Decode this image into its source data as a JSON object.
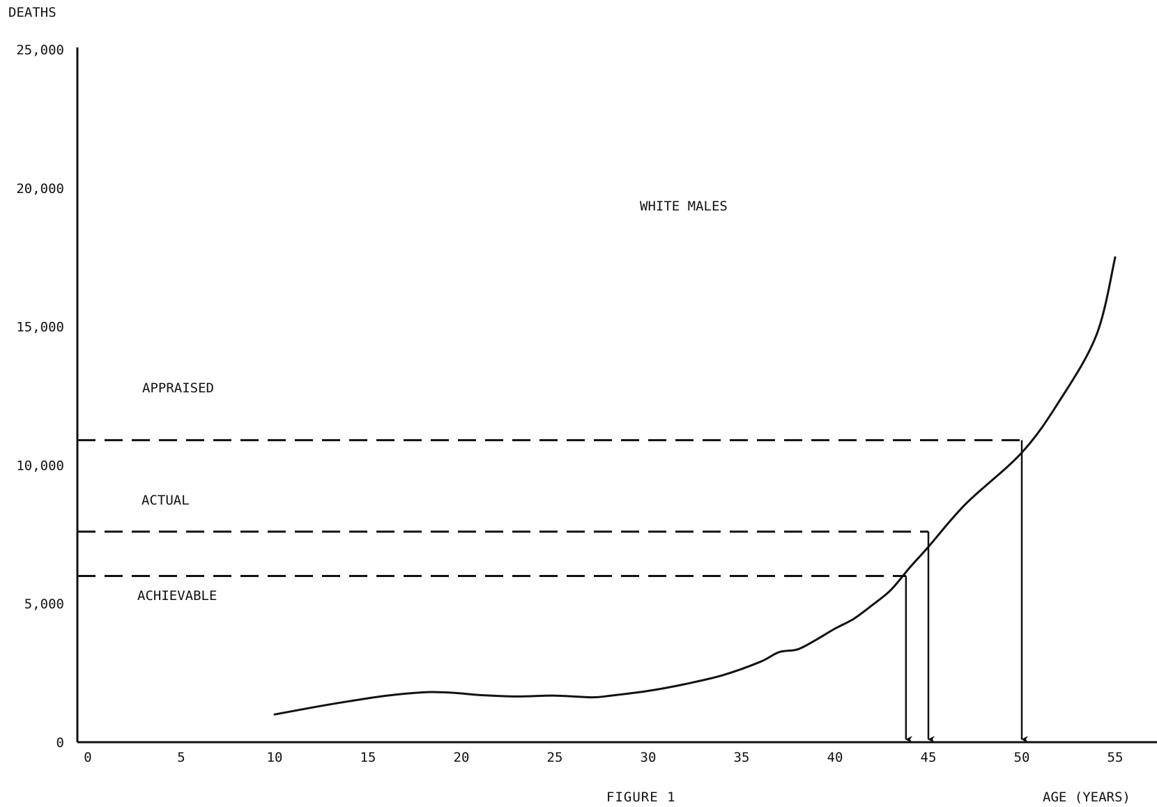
{
  "chart_data": {
    "type": "line",
    "title": "WHITE MALES",
    "caption": "FIGURE 1",
    "xlabel": "AGE (YEARS)",
    "ylabel": "DEATHS",
    "xlim": [
      0,
      55
    ],
    "ylim": [
      0,
      25000
    ],
    "x_ticks": [
      0,
      5,
      10,
      15,
      20,
      25,
      30,
      35,
      40,
      45,
      50,
      55
    ],
    "x_tick_labels": [
      "0",
      "5",
      "10",
      "15",
      "20",
      "25",
      "30",
      "35",
      "40",
      "45",
      "50",
      "55"
    ],
    "y_ticks": [
      0,
      5000,
      10000,
      15000,
      20000,
      25000
    ],
    "y_tick_labels": [
      "0",
      "5,000",
      "10,000",
      "15,000",
      "20,000",
      "25,000"
    ],
    "grid": false,
    "series": [
      {
        "points": [
          [
            10,
            1000
          ],
          [
            12,
            1250
          ],
          [
            14,
            1480
          ],
          [
            16,
            1680
          ],
          [
            18,
            1800
          ],
          [
            19,
            1800
          ],
          [
            20,
            1760
          ],
          [
            21,
            1700
          ],
          [
            23,
            1650
          ],
          [
            25,
            1680
          ],
          [
            27,
            1620
          ],
          [
            28,
            1680
          ],
          [
            30,
            1850
          ],
          [
            32,
            2100
          ],
          [
            34,
            2420
          ],
          [
            36,
            2900
          ],
          [
            37,
            3250
          ],
          [
            38,
            3350
          ],
          [
            39,
            3700
          ],
          [
            40,
            4100
          ],
          [
            41,
            4450
          ],
          [
            42,
            4950
          ],
          [
            43,
            5500
          ],
          [
            44,
            6300
          ],
          [
            45,
            7050
          ],
          [
            47,
            8600
          ],
          [
            50,
            10450
          ],
          [
            52,
            12300
          ],
          [
            54,
            14700
          ],
          [
            55,
            17500
          ]
        ]
      }
    ],
    "reference_lines": [
      {
        "label": "APPRAISED",
        "deaths": 10900,
        "age": 50
      },
      {
        "label": "ACTUAL",
        "deaths": 7600,
        "age": 45
      },
      {
        "label": "ACHIEVABLE",
        "deaths": 6000,
        "age": 43.8
      }
    ]
  }
}
